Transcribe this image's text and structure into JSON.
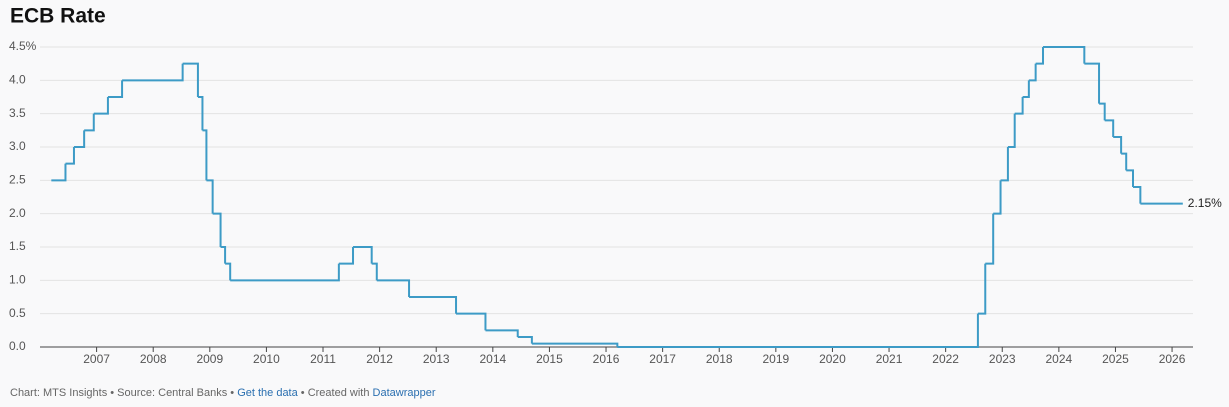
{
  "chart_data": {
    "type": "step-line",
    "title": "ECB Rate",
    "x": [
      2006.2,
      2006.45,
      2006.6,
      2006.78,
      2006.95,
      2007.2,
      2007.45,
      2008.52,
      2008.79,
      2008.87,
      2008.94,
      2009.05,
      2009.19,
      2009.27,
      2009.36,
      2011.28,
      2011.53,
      2011.86,
      2011.95,
      2012.52,
      2013.35,
      2013.87,
      2014.44,
      2014.69,
      2016.2,
      2022.57,
      2022.7,
      2022.84,
      2022.97,
      2023.1,
      2023.22,
      2023.36,
      2023.47,
      2023.59,
      2023.72,
      2024.45,
      2024.71,
      2024.81,
      2024.96,
      2025.1,
      2025.19,
      2025.31,
      2025.44,
      2026.19
    ],
    "values": [
      2.5,
      2.75,
      3.0,
      3.25,
      3.5,
      3.75,
      4.0,
      4.25,
      3.75,
      3.25,
      2.5,
      2.0,
      1.5,
      1.25,
      1.0,
      1.25,
      1.5,
      1.25,
      1.0,
      0.75,
      0.5,
      0.25,
      0.15,
      0.05,
      0.0,
      0.5,
      1.25,
      2.0,
      2.5,
      3.0,
      3.5,
      3.75,
      4.0,
      4.25,
      4.5,
      4.25,
      3.65,
      3.4,
      3.15,
      2.9,
      2.65,
      2.4,
      2.15,
      2.15
    ],
    "value_labels": [
      null,
      null,
      null,
      null,
      null,
      null,
      null,
      null,
      null,
      null,
      null,
      null,
      null,
      null,
      null,
      null,
      null,
      null,
      null,
      null,
      null,
      null,
      null,
      null,
      null,
      null,
      null,
      null,
      null,
      null,
      null,
      null,
      null,
      null,
      null,
      null,
      null,
      null,
      null,
      null,
      null,
      null,
      null,
      "2.15%"
    ],
    "color": "#3d9bc6",
    "xlim": [
      2006,
      2026.37
    ],
    "xticks": [
      2007,
      2008,
      2009,
      2010,
      2011,
      2012,
      2013,
      2014,
      2015,
      2016,
      2017,
      2018,
      2019,
      2020,
      2021,
      2022,
      2023,
      2024,
      2025,
      2026
    ],
    "ylim": [
      0,
      4.5
    ],
    "yticks": [
      {
        "value": 0,
        "label": "0.0"
      },
      {
        "value": 0.5,
        "label": "0.5"
      },
      {
        "value": 1,
        "label": "1.0"
      },
      {
        "value": 1.5,
        "label": "1.5"
      },
      {
        "value": 2,
        "label": "2.0"
      },
      {
        "value": 2.5,
        "label": "2.5"
      },
      {
        "value": 3,
        "label": "3.0"
      },
      {
        "value": 3.5,
        "label": "3.5"
      },
      {
        "value": 4,
        "label": "4.0"
      },
      {
        "value": 4.5,
        "label": "4.5%"
      }
    ],
    "grid": true,
    "footer": {
      "credit": "Chart: MTS Insights • Source: Central Banks •",
      "data_link": "Get the data",
      "created": "• Created with",
      "tool_link": "Datawrapper"
    }
  }
}
